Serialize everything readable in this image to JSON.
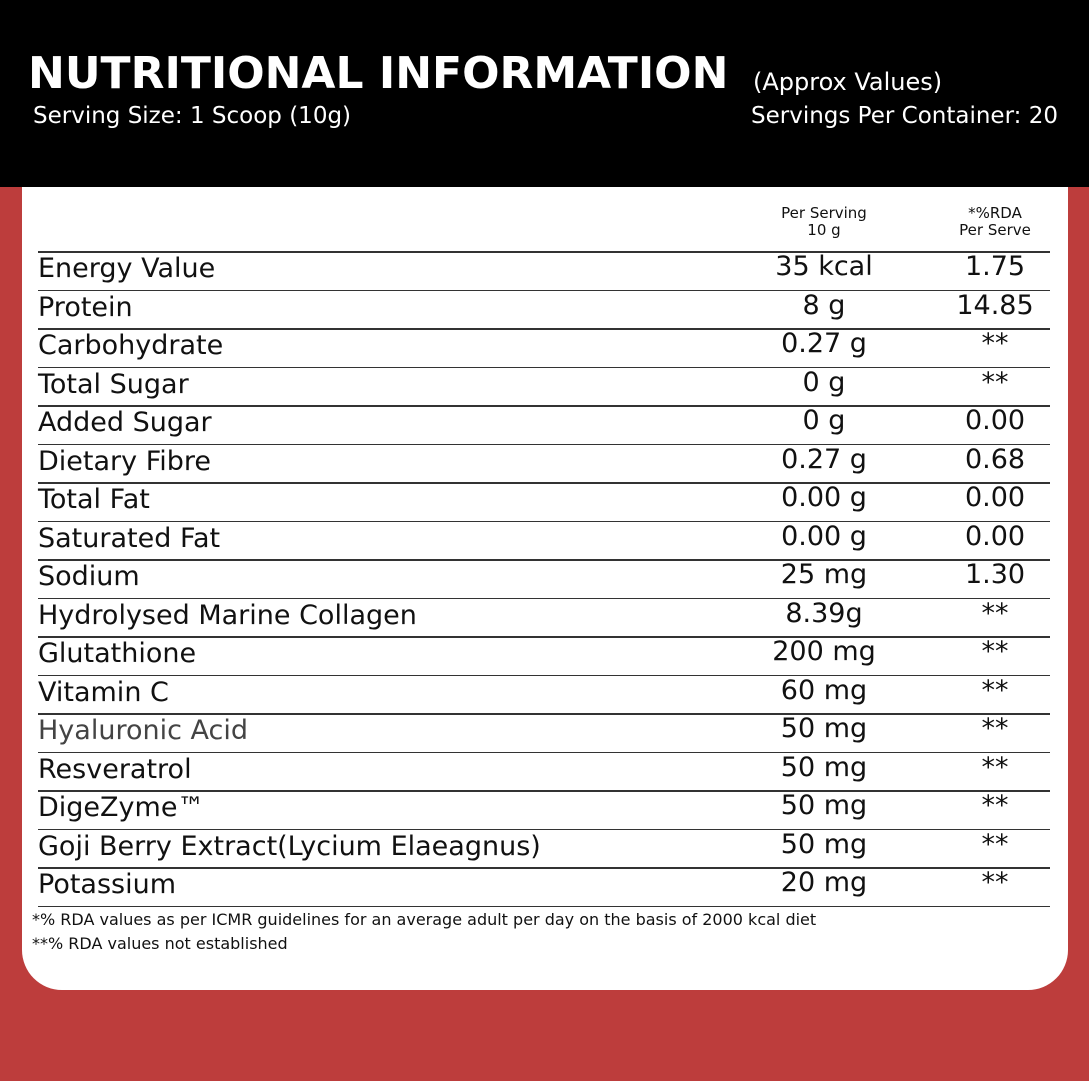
{
  "header": {
    "title": "NUTRITIONAL INFORMATION",
    "note": "(Approx Values)",
    "serving_size": "Serving Size: 1 Scoop (10g)",
    "servings_per_container": "Servings Per Container: 20"
  },
  "table": {
    "columns": [
      [
        "Per Serving",
        "10 g"
      ],
      [
        "*%RDA",
        "Per Serve"
      ]
    ],
    "rows": [
      [
        "Energy Value",
        "35 kcal",
        "1.75"
      ],
      [
        "Protein",
        "8 g",
        "14.85"
      ],
      [
        "Carbohydrate",
        "0.27 g",
        "**"
      ],
      [
        "Total Sugar",
        "0 g",
        "**"
      ],
      [
        "Added Sugar",
        "0 g",
        "0.00"
      ],
      [
        "Dietary Fibre",
        "0.27 g",
        "0.68"
      ],
      [
        "Total Fat",
        "0.00 g",
        "0.00"
      ],
      [
        "Saturated Fat",
        "0.00 g",
        "0.00"
      ],
      [
        "Sodium",
        "25 mg",
        "1.30"
      ],
      [
        "Hydrolysed Marine Collagen",
        "8.39g",
        "**"
      ],
      [
        "Glutathione",
        "200 mg",
        "**"
      ],
      [
        "Vitamin C",
        "60 mg",
        "**"
      ],
      [
        "Hyaluronic Acid",
        "50 mg",
        "**"
      ],
      [
        "Resveratrol",
        "50 mg",
        "**"
      ],
      [
        "DigeZyme™",
        "50 mg",
        "**"
      ],
      [
        "Goji Berry Extract(Lycium Elaeagnus)",
        "50 mg",
        "**"
      ],
      [
        "Potassium",
        "20 mg",
        "**"
      ]
    ]
  },
  "footnotes": [
    "*% RDA values as per ICMR guidelines for an average adult per day on the basis of 2000 kcal diet",
    "**% RDA values not established"
  ]
}
